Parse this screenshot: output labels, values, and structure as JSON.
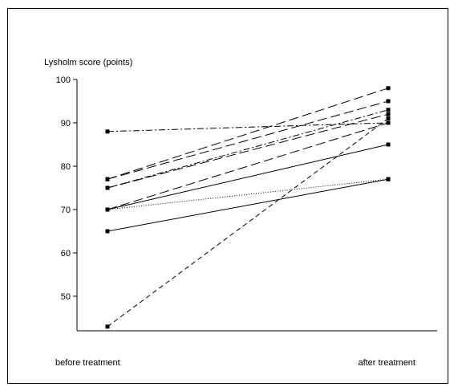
{
  "chart_data": {
    "type": "line",
    "ylabel": "Lysholm score (points)",
    "categories": [
      "before treatment",
      "after treatment"
    ],
    "yticks": [
      50,
      60,
      70,
      80,
      90,
      100
    ],
    "ylim": [
      41,
      100
    ],
    "grid": false,
    "legend": "none",
    "series": [
      {
        "values": [
          88,
          90
        ],
        "dash": "dash-dot"
      },
      {
        "values": [
          77,
          98
        ],
        "dash": "long-dash"
      },
      {
        "values": [
          77,
          95
        ],
        "dash": "long-dash"
      },
      {
        "values": [
          75,
          93
        ],
        "dash": "dash-dot"
      },
      {
        "values": [
          75,
          92
        ],
        "dash": "long-dash"
      },
      {
        "values": [
          70,
          90
        ],
        "dash": "long-dash"
      },
      {
        "values": [
          70,
          85
        ],
        "dash": "solid"
      },
      {
        "values": [
          70,
          77
        ],
        "dash": "dotted"
      },
      {
        "values": [
          65,
          77
        ],
        "dash": "solid"
      },
      {
        "values": [
          43,
          91
        ],
        "dash": "dashed"
      }
    ]
  }
}
